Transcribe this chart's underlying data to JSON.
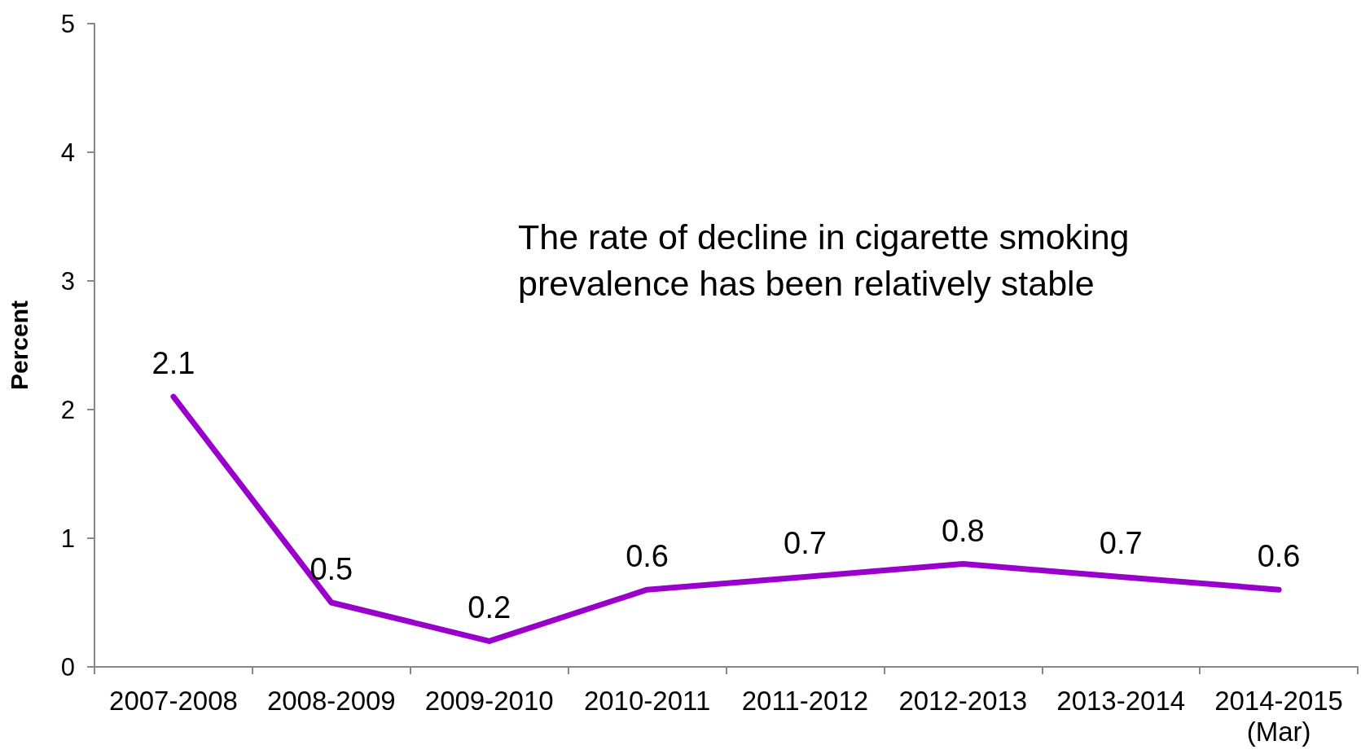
{
  "chart_data": {
    "type": "line",
    "ylabel": "Percent",
    "categories": [
      "2007-2008",
      "2008-2009",
      "2009-2010",
      "2010-2011",
      "2011-2012",
      "2012-2013",
      "2013-2014",
      "2014-2015\n(Mar)"
    ],
    "series": [
      {
        "color": "#9900cc",
        "values": [
          2.1,
          0.5,
          0.2,
          0.6,
          0.7,
          0.8,
          0.7,
          0.6
        ]
      }
    ],
    "ylim": [
      0,
      5
    ],
    "yticks": [
      0,
      1,
      2,
      3,
      4,
      5
    ],
    "annotations": [
      "The rate of decline in cigarette smoking\nprevalence has been relatively stable"
    ],
    "data_labels": true,
    "grid": false,
    "marker": "none",
    "line_style": "solid"
  }
}
